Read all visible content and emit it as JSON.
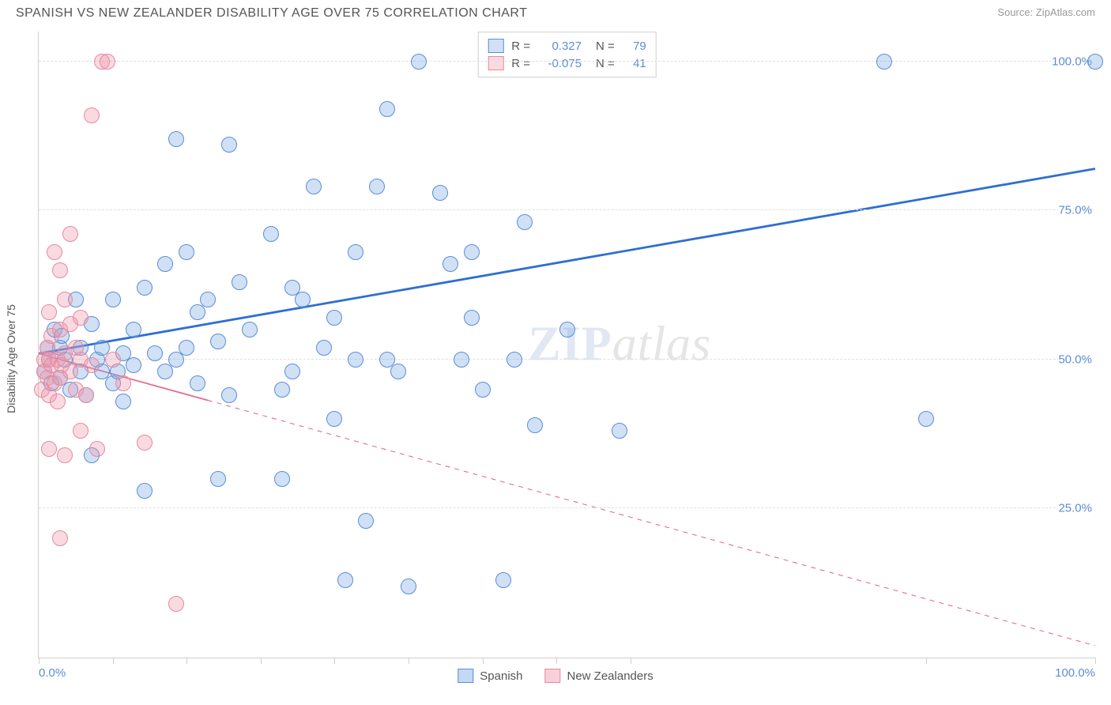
{
  "title": "SPANISH VS NEW ZEALANDER DISABILITY AGE OVER 75 CORRELATION CHART",
  "source_label": "Source:",
  "source_name": "ZipAtlas.com",
  "y_axis_label": "Disability Age Over 75",
  "watermark_zip": "ZIP",
  "watermark_atlas": "atlas",
  "chart": {
    "type": "scatter",
    "xlim": [
      0,
      100
    ],
    "ylim": [
      0,
      105
    ],
    "x_tick_positions": [
      0,
      7,
      14,
      21,
      28,
      35,
      42,
      49,
      56,
      84,
      100
    ],
    "x_labels": {
      "0": "0.0%",
      "100": "100.0%"
    },
    "y_gridlines": [
      25,
      50,
      75,
      100
    ],
    "y_labels": {
      "25": "25.0%",
      "50": "50.0%",
      "75": "75.0%",
      "100": "100.0%"
    },
    "background_color": "#ffffff",
    "grid_color": "#e0e0e0",
    "axis_color": "#cfcfcf",
    "label_color": "#5b8dd6",
    "label_fontsize": 15,
    "marker_radius": 10,
    "marker_opacity": 0.55
  },
  "series": [
    {
      "name": "Spanish",
      "color_fill": "rgba(120,170,230,0.35)",
      "color_stroke": "#5b8dd6",
      "trend": {
        "x0": 0,
        "y0": 51,
        "x1": 100,
        "y1": 82,
        "solid_until_x": 100,
        "color": "#2e6fd1",
        "width": 2.8
      },
      "stats": {
        "R_label": "R =",
        "R": "0.327",
        "N_label": "N =",
        "N": "79"
      },
      "points": [
        [
          0.5,
          48
        ],
        [
          0.8,
          52
        ],
        [
          1,
          50
        ],
        [
          1.2,
          46
        ],
        [
          1.5,
          55
        ],
        [
          2,
          47
        ],
        [
          2,
          52
        ],
        [
          2.2,
          54
        ],
        [
          2.5,
          50
        ],
        [
          3,
          45
        ],
        [
          3.5,
          60
        ],
        [
          4,
          52
        ],
        [
          4,
          48
        ],
        [
          4.5,
          44
        ],
        [
          5,
          56
        ],
        [
          5,
          34
        ],
        [
          5.5,
          50
        ],
        [
          6,
          52
        ],
        [
          6,
          48
        ],
        [
          7,
          46
        ],
        [
          7,
          60
        ],
        [
          7.5,
          48
        ],
        [
          8,
          51
        ],
        [
          8,
          43
        ],
        [
          9,
          49
        ],
        [
          9,
          55
        ],
        [
          10,
          28
        ],
        [
          10,
          62
        ],
        [
          11,
          51
        ],
        [
          12,
          48
        ],
        [
          12,
          66
        ],
        [
          13,
          87
        ],
        [
          13,
          50
        ],
        [
          14,
          68
        ],
        [
          14,
          52
        ],
        [
          15,
          58
        ],
        [
          15,
          46
        ],
        [
          16,
          60
        ],
        [
          17,
          30
        ],
        [
          17,
          53
        ],
        [
          18,
          86
        ],
        [
          18,
          44
        ],
        [
          19,
          63
        ],
        [
          20,
          55
        ],
        [
          22,
          71
        ],
        [
          23,
          45
        ],
        [
          23,
          30
        ],
        [
          24,
          62
        ],
        [
          24,
          48
        ],
        [
          25,
          60
        ],
        [
          26,
          79
        ],
        [
          27,
          52
        ],
        [
          28,
          57
        ],
        [
          28,
          40
        ],
        [
          29,
          13
        ],
        [
          30,
          68
        ],
        [
          30,
          50
        ],
        [
          31,
          23
        ],
        [
          32,
          79
        ],
        [
          33,
          92
        ],
        [
          33,
          50
        ],
        [
          34,
          48
        ],
        [
          35,
          12
        ],
        [
          36,
          100
        ],
        [
          38,
          78
        ],
        [
          39,
          66
        ],
        [
          40,
          50
        ],
        [
          41,
          68
        ],
        [
          41,
          57
        ],
        [
          42,
          45
        ],
        [
          44,
          13
        ],
        [
          45,
          50
        ],
        [
          46,
          73
        ],
        [
          47,
          39
        ],
        [
          50,
          55
        ],
        [
          55,
          38
        ],
        [
          80,
          100
        ],
        [
          84,
          40
        ],
        [
          100,
          100
        ]
      ]
    },
    {
      "name": "New Zealanders",
      "color_fill": "rgba(240,150,170,0.35)",
      "color_stroke": "#e48aa0",
      "trend": {
        "x0": 0,
        "y0": 51,
        "x1": 100,
        "y1": 2,
        "solid_until_x": 16,
        "color": "#e86a8a",
        "width": 1.8
      },
      "stats": {
        "R_label": "R =",
        "R": "-0.075",
        "N_label": "N =",
        "N": "41"
      },
      "points": [
        [
          0.3,
          45
        ],
        [
          0.5,
          48
        ],
        [
          0.5,
          50
        ],
        [
          0.8,
          47
        ],
        [
          0.8,
          52
        ],
        [
          1,
          44
        ],
        [
          1,
          50
        ],
        [
          1,
          58
        ],
        [
          1,
          35
        ],
        [
          1.2,
          49
        ],
        [
          1.2,
          54
        ],
        [
          1.5,
          46
        ],
        [
          1.5,
          68
        ],
        [
          1.8,
          50
        ],
        [
          1.8,
          43
        ],
        [
          2,
          55
        ],
        [
          2,
          47
        ],
        [
          2,
          65
        ],
        [
          2,
          20
        ],
        [
          2.2,
          49
        ],
        [
          2.5,
          51
        ],
        [
          2.5,
          34
        ],
        [
          2.5,
          60
        ],
        [
          3,
          48
        ],
        [
          3,
          56
        ],
        [
          3,
          71
        ],
        [
          3.5,
          45
        ],
        [
          3.5,
          52
        ],
        [
          4,
          50
        ],
        [
          4,
          38
        ],
        [
          4,
          57
        ],
        [
          4.5,
          44
        ],
        [
          5,
          49
        ],
        [
          5,
          91
        ],
        [
          5.5,
          35
        ],
        [
          6,
          100
        ],
        [
          6.5,
          100
        ],
        [
          7,
          50
        ],
        [
          8,
          46
        ],
        [
          10,
          36
        ],
        [
          13,
          9
        ]
      ]
    }
  ],
  "legend_bottom": [
    {
      "label": "Spanish",
      "fill": "rgba(120,170,230,0.45)",
      "stroke": "#5b8dd6"
    },
    {
      "label": "New Zealanders",
      "fill": "rgba(240,150,170,0.45)",
      "stroke": "#e48aa0"
    }
  ]
}
